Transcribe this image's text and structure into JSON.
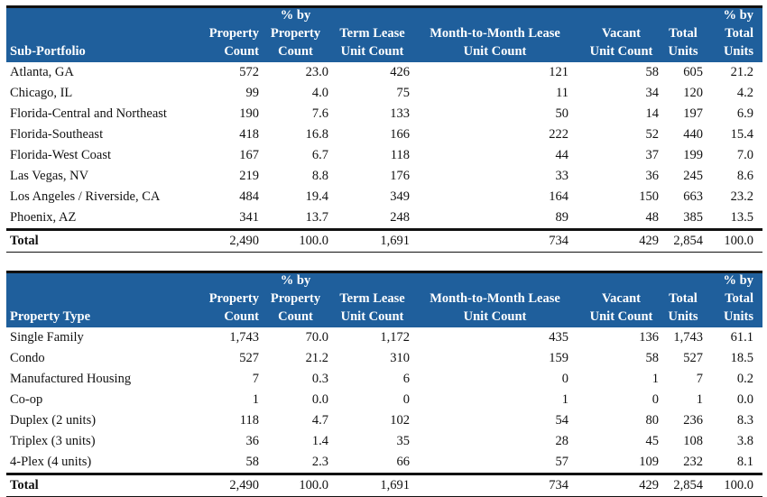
{
  "table1": {
    "headers": [
      "Sub-Portfolio",
      "Property\nCount",
      "%  by\nProperty\nCount",
      "Term Lease\nUnit Count",
      "Month-to-Month Lease\nUnit Count",
      "Vacant\nUnit Count",
      "Total\nUnits",
      "% by\nTotal\nUnits"
    ],
    "rows": [
      [
        "Atlanta, GA",
        "572",
        "23.0",
        "426",
        "121",
        "58",
        "605",
        "21.2"
      ],
      [
        "Chicago, IL",
        "99",
        "4.0",
        "75",
        "11",
        "34",
        "120",
        "4.2"
      ],
      [
        "Florida-Central and Northeast",
        "190",
        "7.6",
        "133",
        "50",
        "14",
        "197",
        "6.9"
      ],
      [
        "Florida-Southeast",
        "418",
        "16.8",
        "166",
        "222",
        "52",
        "440",
        "15.4"
      ],
      [
        "Florida-West Coast",
        "167",
        "6.7",
        "118",
        "44",
        "37",
        "199",
        "7.0"
      ],
      [
        "Las Vegas, NV",
        "219",
        "8.8",
        "176",
        "33",
        "36",
        "245",
        "8.6"
      ],
      [
        "Los Angeles / Riverside, CA",
        "484",
        "19.4",
        "349",
        "164",
        "150",
        "663",
        "23.2"
      ],
      [
        "Phoenix, AZ",
        "341",
        "13.7",
        "248",
        "89",
        "48",
        "385",
        "13.5"
      ]
    ],
    "total": [
      "Total",
      "2,490",
      "100.0",
      "1,691",
      "734",
      "429",
      "2,854",
      "100.0"
    ]
  },
  "table2": {
    "headers": [
      "Property Type",
      "Property\nCount",
      "%  by\nProperty\nCount",
      "Term Lease\nUnit Count",
      "Month-to-Month Lease\nUnit Count",
      "Vacant\nUnit Count",
      "Total\nUnits",
      "% by\nTotal\nUnits"
    ],
    "rows": [
      [
        "Single Family",
        "1,743",
        "70.0",
        "1,172",
        "435",
        "136",
        "1,743",
        "61.1"
      ],
      [
        "Condo",
        "527",
        "21.2",
        "310",
        "159",
        "58",
        "527",
        "18.5"
      ],
      [
        "Manufactured Housing",
        "7",
        "0.3",
        "6",
        "0",
        "1",
        "7",
        "0.2"
      ],
      [
        "Co-op",
        "1",
        "0.0",
        "0",
        "1",
        "0",
        "1",
        "0.0"
      ],
      [
        "Duplex (2 units)",
        "118",
        "4.7",
        "102",
        "54",
        "80",
        "236",
        "8.3"
      ],
      [
        "Triplex (3 units)",
        "36",
        "1.4",
        "35",
        "28",
        "45",
        "108",
        "3.8"
      ],
      [
        "4-Plex (4 units)",
        "58",
        "2.3",
        "66",
        "57",
        "109",
        "232",
        "8.1"
      ]
    ],
    "total": [
      "Total",
      "2,490",
      "100.0",
      "1,691",
      "734",
      "429",
      "2,854",
      "100.0"
    ]
  }
}
